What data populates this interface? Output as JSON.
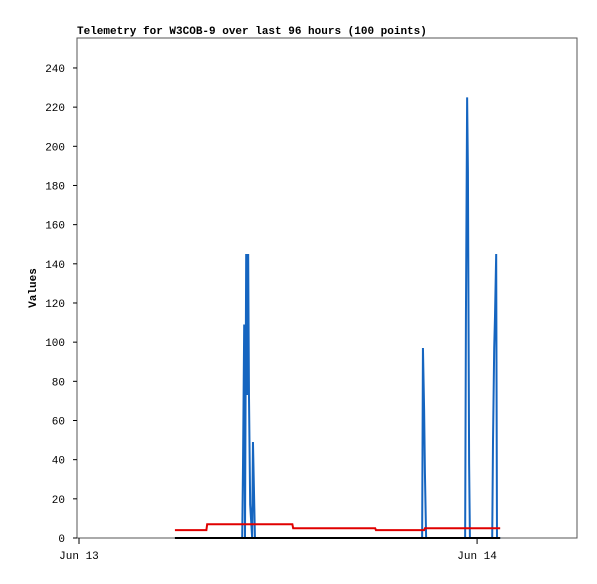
{
  "chart_data": {
    "type": "line",
    "title": "Telemetry for W3COB-9 over last 96 hours (100 points)",
    "y_label": "Values",
    "xlim": [
      12.995,
      14.251
    ],
    "xticks": [
      {
        "value": 13,
        "label": "Jun 13"
      },
      {
        "value": 14,
        "label": "Jun 14"
      }
    ],
    "ylim": [
      0,
      255.3
    ],
    "yticks": [
      0,
      20,
      40,
      60,
      80,
      100,
      120,
      140,
      160,
      180,
      200,
      220,
      240
    ],
    "series": [
      {
        "color": "#1565c0",
        "x": [
          13.241,
          13.41,
          13.412,
          13.415,
          13.417,
          13.42,
          13.422,
          13.425,
          13.427,
          13.43,
          13.435,
          13.437,
          13.442,
          13.862,
          13.864,
          13.867,
          13.869,
          13.872,
          13.97,
          13.972,
          13.975,
          13.977,
          13.98,
          13.982,
          14.038,
          14.04,
          14.043,
          14.045,
          14.048,
          14.05,
          14.058
        ],
        "values": [
          0,
          0,
          37,
          109,
          0,
          145,
          73,
          145,
          73,
          17,
          0,
          49,
          0,
          0,
          97,
          65,
          33,
          0,
          0,
          113,
          225,
          187,
          38,
          0,
          0,
          49,
          97,
          113,
          145,
          0,
          0
        ]
      },
      {
        "color": "#000000",
        "x": [
          13.241,
          14.058
        ],
        "values": [
          0,
          0
        ]
      },
      {
        "color": "#e00000",
        "x": [
          13.241,
          13.32,
          13.322,
          13.536,
          13.538,
          13.744,
          13.746,
          13.867,
          13.869,
          14.058
        ],
        "values": [
          4,
          4,
          7,
          7,
          5,
          5,
          4,
          4,
          5,
          5
        ]
      }
    ]
  }
}
